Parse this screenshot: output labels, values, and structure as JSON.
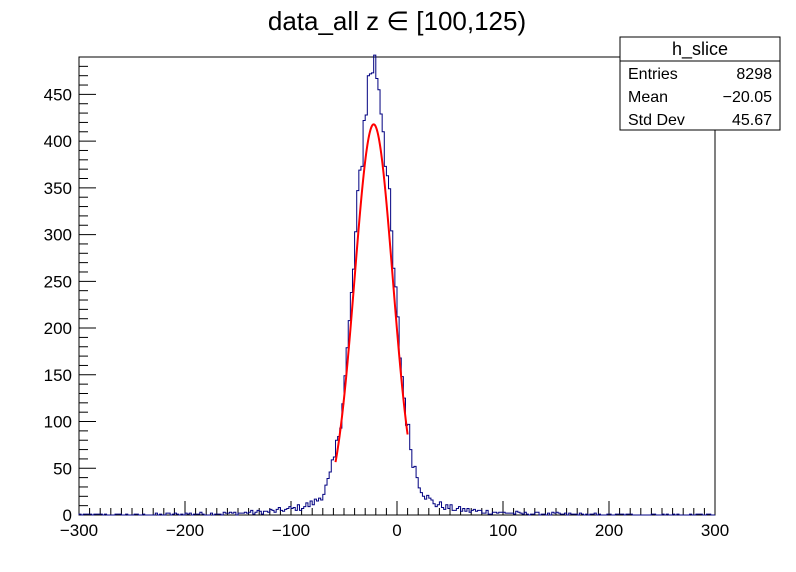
{
  "chart_data": {
    "type": "histogram",
    "title": "data_all z ∈ [100,125)",
    "xlabel": "",
    "ylabel": "",
    "xlim": [
      -300,
      300
    ],
    "ylim": [
      0,
      490
    ],
    "x_ticks": [
      -300,
      -200,
      -100,
      0,
      100,
      200,
      300
    ],
    "x_tick_labels": [
      "−300",
      "−200",
      "−100",
      "0",
      "100",
      "200",
      "300"
    ],
    "y_ticks": [
      0,
      50,
      100,
      150,
      200,
      250,
      300,
      350,
      400,
      450
    ],
    "y_tick_labels": [
      "0",
      "50",
      "100",
      "150",
      "200",
      "250",
      "300",
      "350",
      "400",
      "450"
    ],
    "grid": false,
    "histogram": {
      "name": "h_slice",
      "color": "#000080",
      "bin_width": 2,
      "x_start": -300,
      "shape_mean": -22,
      "shape_sigma": 17,
      "peak": 415,
      "tail_scale": 30,
      "tail_amp": 120,
      "tail_exp_amp": 180,
      "tail_exp_scale": 35
    },
    "fit": {
      "color": "#ff0000",
      "x_range": [
        -58,
        10
      ],
      "mean": -22,
      "sigma": 18,
      "amplitude": 418
    },
    "stats_box": {
      "name": "h_slice",
      "rows": [
        {
          "label": "Entries",
          "value": "8298"
        },
        {
          "label": "Mean",
          "value": "−20.05"
        },
        {
          "label": "Std Dev",
          "value": "45.67"
        }
      ]
    }
  }
}
